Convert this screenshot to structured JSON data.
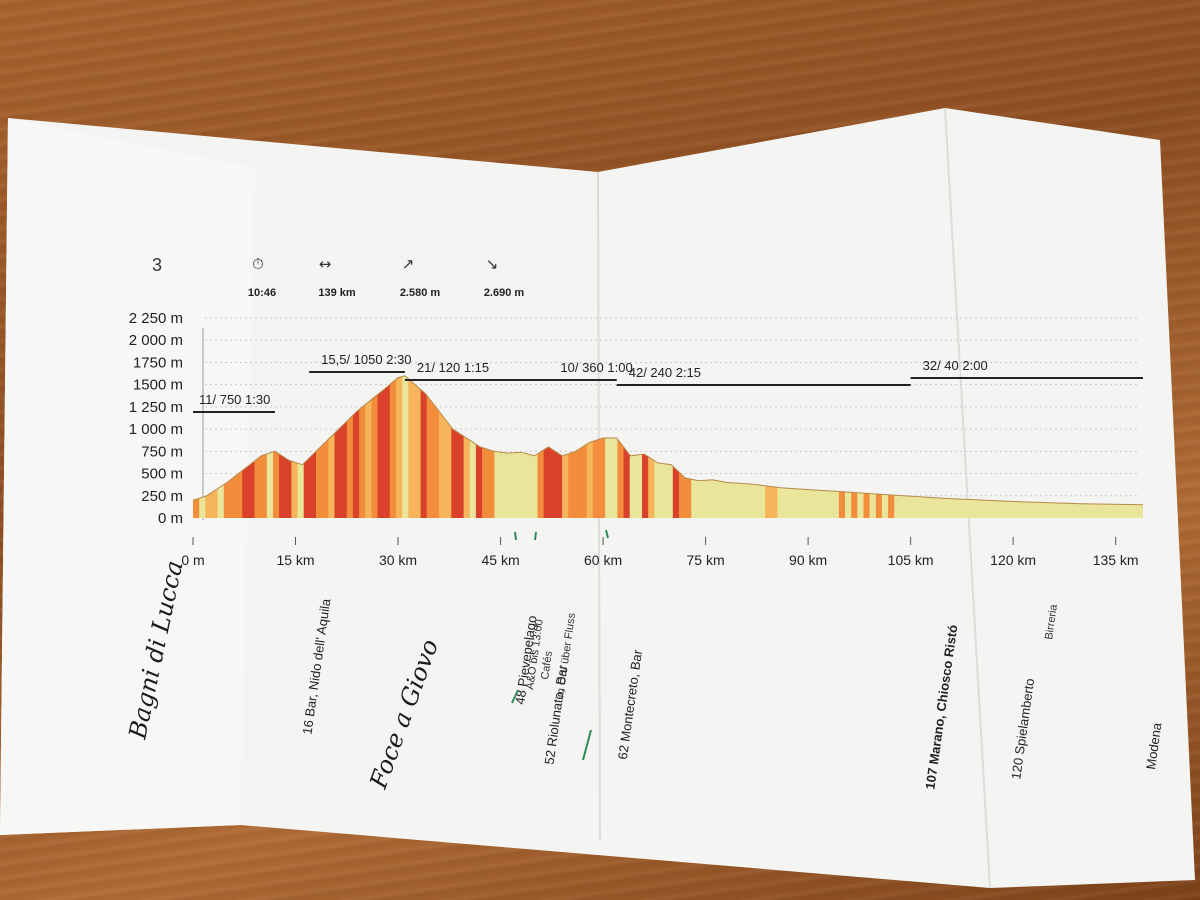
{
  "stage": "3",
  "stats": [
    {
      "icon": "stopwatch-icon",
      "glyph": "⏱",
      "value": "10:46"
    },
    {
      "icon": "distance-arrows-icon",
      "glyph": "↔",
      "value": "139 km"
    },
    {
      "icon": "ascent-arrow-icon",
      "glyph": "↗",
      "value": "2.580 m"
    },
    {
      "icon": "descent-arrow-icon",
      "glyph": "↘",
      "value": "2.690 m"
    }
  ],
  "chart_data": {
    "type": "area",
    "xlabel": "",
    "ylabel": "",
    "x_ticks": [
      "0 m",
      "15 km",
      "30 km",
      "45 km",
      "60 km",
      "75 km",
      "90 km",
      "105 km",
      "120 km",
      "135 km"
    ],
    "y_ticks": [
      "0 m",
      "250 m",
      "500 m",
      "750 m",
      "1 000 m",
      "1 250 m",
      "1500 m",
      "1750 m",
      "2 000 m",
      "2 250 m"
    ],
    "xlim": [
      0,
      139
    ],
    "ylim": [
      0,
      2250
    ],
    "grid": true,
    "series": [
      {
        "x": [
          0,
          2,
          5,
          8,
          10,
          12,
          14,
          16,
          18,
          20,
          24,
          28,
          30,
          31,
          34,
          38,
          42,
          44,
          46,
          48,
          50,
          52,
          54,
          56,
          58,
          60,
          62,
          64,
          66,
          68,
          70,
          72,
          74,
          76,
          78,
          82,
          86,
          90,
          94,
          98,
          104,
          110,
          116,
          122,
          130,
          139
        ],
        "y": [
          200,
          250,
          400,
          580,
          700,
          750,
          650,
          600,
          750,
          900,
          1200,
          1450,
          1580,
          1600,
          1400,
          1000,
          800,
          750,
          730,
          740,
          700,
          800,
          700,
          750,
          850,
          900,
          900,
          700,
          720,
          620,
          600,
          450,
          420,
          430,
          400,
          380,
          340,
          320,
          300,
          280,
          250,
          220,
          200,
          180,
          160,
          150
        ]
      }
    ],
    "segments": [
      {
        "label": "11/ 750   1:30",
        "from_km": 0,
        "to_km": 12
      },
      {
        "label": "15,5/ 1050   2:30",
        "from_km": 17,
        "to_km": 31
      },
      {
        "label": "21/ 120   1:15",
        "from_km": 31,
        "to_km": 52
      },
      {
        "label": "10/ 360   1:00",
        "from_km": 52,
        "to_km": 62
      },
      {
        "label": "42/ 240   2:15",
        "from_km": 62,
        "to_km": 105
      },
      {
        "label": "32/ 40   2:00",
        "from_km": 105,
        "to_km": 139
      }
    ]
  },
  "places": [
    {
      "text": "16 Bar, Nido dell' Aquila",
      "km": 16
    },
    {
      "text": "48 Pievepelago",
      "km": 48
    },
    {
      "text": "52 Riolunato, Bar",
      "km": 52
    },
    {
      "text": "62 Montecreto, Bar",
      "km": 62
    },
    {
      "text": "107 Marano, Chiosco Ristó",
      "km": 107
    },
    {
      "text": "120 Spielamberto",
      "km": 120
    },
    {
      "text": "Modena",
      "km": 139
    }
  ],
  "small_notes": [
    {
      "text": "Birreria",
      "km": 121
    },
    {
      "text": "A&O bis 13:00",
      "km": 49
    },
    {
      "text": "Cafés",
      "km": 49
    },
    {
      "text": "im Ort/ über Fluss",
      "km": 50
    }
  ],
  "handwritten": [
    {
      "text": "Bagni di Lucca"
    },
    {
      "text": "Foce a Giovo"
    }
  ],
  "colors": {
    "paper": "#f4f4f2",
    "ink": "#222222",
    "steep_red": "#d9412b",
    "orange": "#f28d3c",
    "light_orange": "#f6b55a",
    "pale_yellow": "#e9e59a",
    "marker_green": "#2e8b57"
  }
}
